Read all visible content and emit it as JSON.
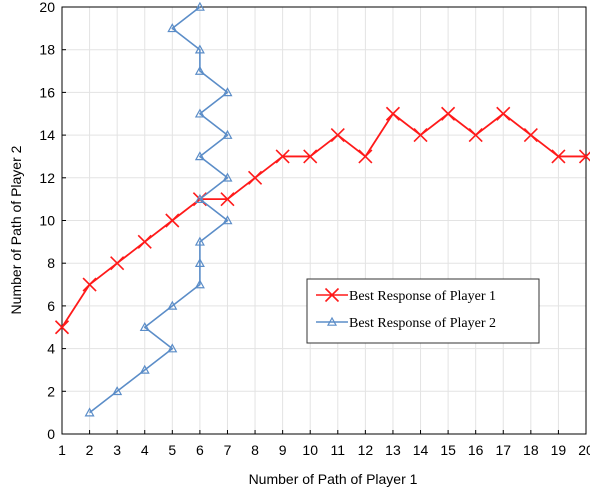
{
  "chart_data": {
    "type": "line",
    "title": "",
    "xlabel": "Number of Path of Player 1",
    "ylabel": "Number of Path of Player 2",
    "xlim": [
      1,
      20
    ],
    "ylim": [
      0,
      20
    ],
    "x_ticks": [
      1,
      2,
      3,
      4,
      5,
      6,
      7,
      8,
      9,
      10,
      11,
      12,
      13,
      14,
      15,
      16,
      17,
      18,
      19,
      20
    ],
    "y_ticks": [
      0,
      2,
      4,
      6,
      8,
      10,
      12,
      14,
      16,
      18,
      20
    ],
    "grid": true,
    "legend_position": "center-right",
    "series": [
      {
        "name": "Best Response of Player 1",
        "color": "#ff1a1a",
        "marker": "x",
        "points": [
          [
            1,
            5
          ],
          [
            2,
            7
          ],
          [
            3,
            8
          ],
          [
            4,
            9
          ],
          [
            5,
            10
          ],
          [
            6,
            11
          ],
          [
            7,
            11
          ],
          [
            8,
            12
          ],
          [
            9,
            13
          ],
          [
            10,
            13
          ],
          [
            11,
            14
          ],
          [
            12,
            13
          ],
          [
            13,
            15
          ],
          [
            14,
            14
          ],
          [
            15,
            15
          ],
          [
            16,
            14
          ],
          [
            17,
            15
          ],
          [
            18,
            14
          ],
          [
            19,
            13
          ],
          [
            20,
            13
          ]
        ]
      },
      {
        "name": "Best Response of Player 2",
        "color": "#5b8dc8",
        "marker": "triangle",
        "points": [
          [
            2,
            1
          ],
          [
            3,
            2
          ],
          [
            4,
            3
          ],
          [
            5,
            4
          ],
          [
            4,
            5
          ],
          [
            5,
            6
          ],
          [
            6,
            7
          ],
          [
            6,
            8
          ],
          [
            6,
            9
          ],
          [
            7,
            10
          ],
          [
            6,
            11
          ],
          [
            7,
            12
          ],
          [
            6,
            13
          ],
          [
            7,
            14
          ],
          [
            6,
            15
          ],
          [
            7,
            16
          ],
          [
            6,
            17
          ],
          [
            6,
            18
          ],
          [
            5,
            19
          ],
          [
            6,
            20
          ]
        ]
      }
    ]
  }
}
